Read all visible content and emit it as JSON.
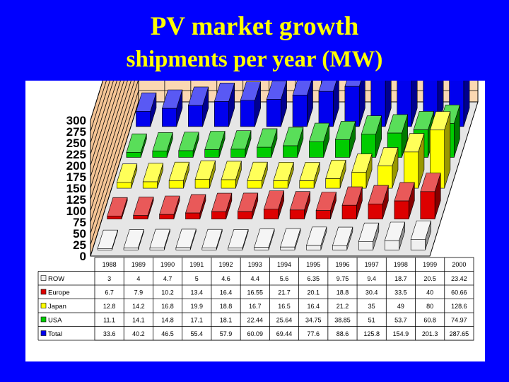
{
  "title": "PV market growth",
  "subtitle": "shipments per year (MW)",
  "chart_data": {
    "type": "bar",
    "style": "3d-clustered-columns-with-data-table",
    "title": "PV market growth",
    "subtitle": "shipments per year (MW)",
    "categories": [
      "1988",
      "1989",
      "1990",
      "1991",
      "1992",
      "1993",
      "1994",
      "1995",
      "1996",
      "1997",
      "1998",
      "1999",
      "2000"
    ],
    "yticks": [
      "0",
      "25",
      "50",
      "75",
      "100",
      "125",
      "150",
      "175",
      "200",
      "225",
      "250",
      "275",
      "300"
    ],
    "ylim": [
      0,
      300
    ],
    "series": [
      {
        "name": "ROW",
        "color": "#f0f0f0",
        "values": [
          "3",
          "4",
          "4.7",
          "5",
          "4.6",
          "4.4",
          "5.6",
          "6.35",
          "9.75",
          "9.4",
          "18.7",
          "20.5",
          "23.42"
        ]
      },
      {
        "name": "Europe",
        "color": "#dd0000",
        "values": [
          "6.7",
          "7.9",
          "10.2",
          "13.4",
          "16.4",
          "16.55",
          "21.7",
          "20.1",
          "18.8",
          "30.4",
          "33.5",
          "40",
          "60.66"
        ]
      },
      {
        "name": "Japan",
        "color": "#ffff00",
        "values": [
          "12.8",
          "14.2",
          "16.8",
          "19.9",
          "18.8",
          "16.7",
          "16.5",
          "16.4",
          "21.2",
          "35",
          "49",
          "80",
          "128.6"
        ]
      },
      {
        "name": "USA",
        "color": "#00cc00",
        "values": [
          "11.1",
          "14.1",
          "14.8",
          "17.1",
          "18.1",
          "22.44",
          "25.64",
          "34.75",
          "38.85",
          "51",
          "53.7",
          "60.8",
          "74.97"
        ]
      },
      {
        "name": "Total",
        "color": "#0000ee",
        "values": [
          "33.6",
          "40.2",
          "46.5",
          "55.4",
          "57.9",
          "60.09",
          "69.44",
          "77.6",
          "88.6",
          "125.8",
          "154.9",
          "201.3",
          "287.65"
        ]
      }
    ]
  }
}
